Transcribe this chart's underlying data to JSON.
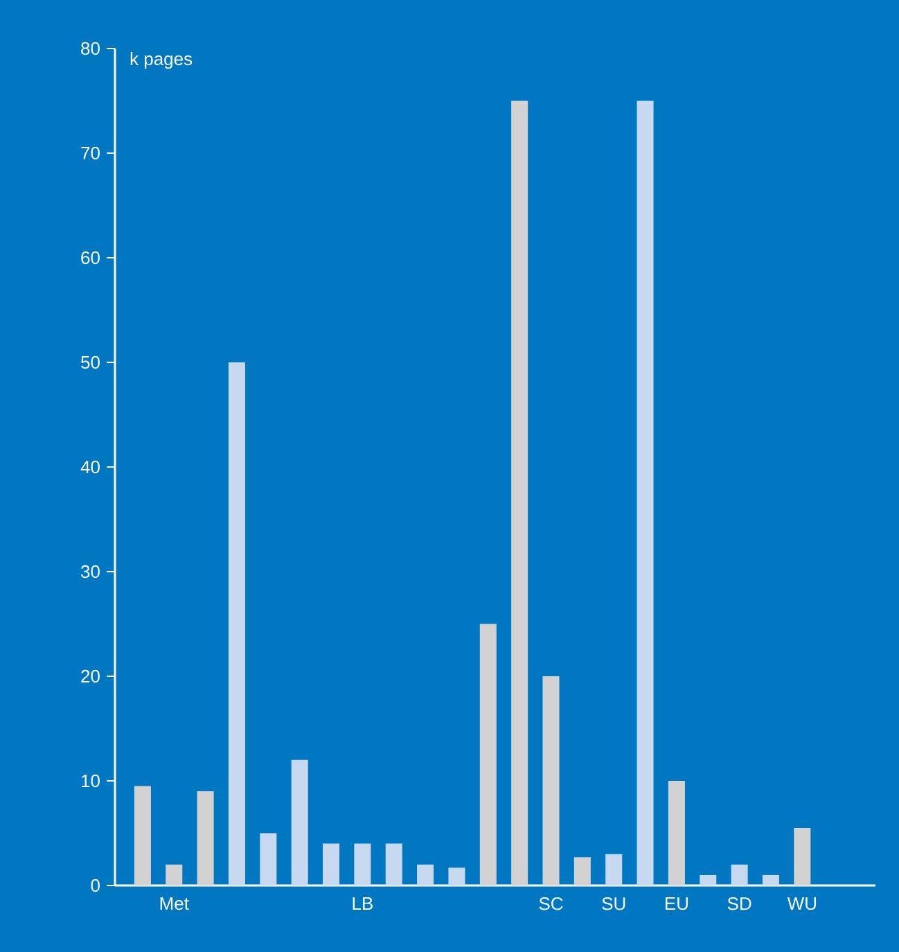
{
  "chart_data": {
    "type": "bar",
    "ylabel": "k pages",
    "categories": [
      null,
      "Met",
      null,
      null,
      null,
      null,
      null,
      "LB",
      null,
      null,
      null,
      null,
      null,
      "SC",
      null,
      "SU",
      null,
      "EU",
      null,
      "SD",
      null,
      "WU"
    ],
    "values": [
      9.5,
      2,
      9,
      50,
      5,
      12,
      4,
      4,
      4,
      2,
      1.7,
      25,
      75,
      20,
      2.7,
      3,
      75,
      10,
      1,
      2,
      1,
      5.5
    ],
    "colors": [
      "#d2d2d2",
      "#d2d2d2",
      "#d2d2d2",
      "#c6d9f1",
      "#c6d9f1",
      "#c6d9f1",
      "#c6d9f1",
      "#c6d9f1",
      "#c6d9f1",
      "#c6d9f1",
      "#c6d9f1",
      "#d2d2d2",
      "#d2d2d2",
      "#d2d2d2",
      "#d2d2d2",
      "#c6d9f1",
      "#c6d9f1",
      "#d2d2d2",
      "#c6d9f1",
      "#c6d9f1",
      "#c6d9f1",
      "#d2d2d2"
    ],
    "ylim": [
      0,
      80
    ],
    "yticks": [
      0,
      10,
      20,
      30,
      40,
      50,
      60,
      70,
      80
    ]
  }
}
